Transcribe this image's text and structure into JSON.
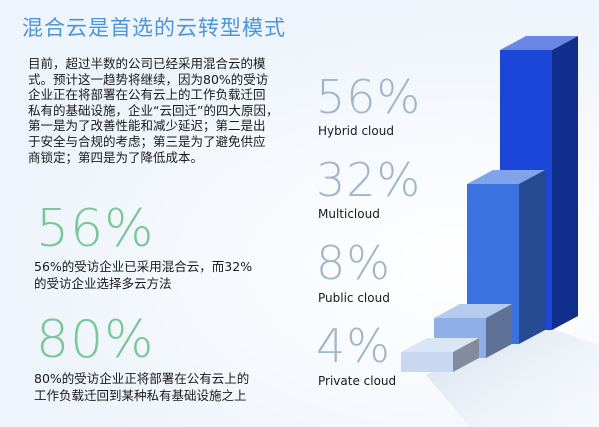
{
  "title": "混合云是首选的云转型模式",
  "intro_lines": [
    "目前，超过半数的公司已经采用混合云的模",
    "式。预计这一趋势将继续，因为80%的受访",
    "企业正在将部署在公有云上的工作负载迁回",
    "私有的基础设施，企业“云回迁”的四大原因，",
    "第一是为了改善性能和减少延迟；第二是出",
    "于安全与合规的考虑；第三是为了避免供应",
    "商锁定；第四是为了降低成本。"
  ],
  "stats": [
    {
      "value": "56%",
      "desc_lines": [
        "56%的受访企业已采用混合云，而32%",
        "的受访企业选择多云方法"
      ]
    },
    {
      "value": "80%",
      "desc_lines": [
        "80%的受访企业正将部署在公有云上的",
        "工作负载迁回到某种私有基础设施之上"
      ]
    }
  ],
  "chart_data": {
    "type": "bar",
    "categories": [
      "Hybrid cloud",
      "Multicloud",
      "Public cloud",
      "Private cloud"
    ],
    "values": [
      56,
      32,
      8,
      4
    ],
    "value_labels": [
      "56%",
      "32%",
      "8%",
      "4%"
    ],
    "colors": [
      "#1b46d8",
      "#3a73e0",
      "#8fb0e6",
      "#c8d8f0"
    ]
  }
}
